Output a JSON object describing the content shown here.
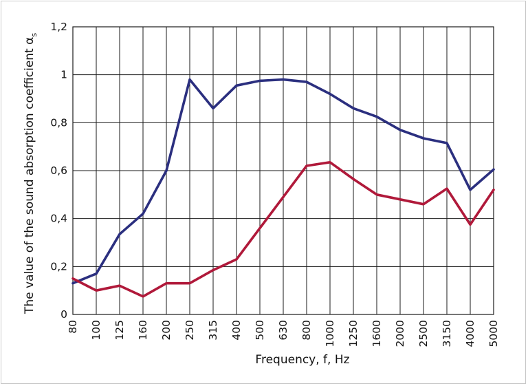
{
  "chart_data": {
    "type": "line",
    "title": "",
    "xlabel": "Frequency, f, Hz",
    "ylabel": "The value of the sound absorption coefficient α",
    "ylabel_subscript": "s",
    "x": [
      "80",
      "100",
      "125",
      "160",
      "200",
      "250",
      "315",
      "400",
      "500",
      "630",
      "800",
      "1000",
      "1250",
      "1600",
      "2000",
      "2500",
      "3150",
      "4000",
      "5000"
    ],
    "y_ticks": [
      "0",
      "0,2",
      "0,4",
      "0,6",
      "0,8",
      "1",
      "1,2"
    ],
    "ylim": [
      0,
      1.2
    ],
    "grid": true,
    "series": [
      {
        "color": "#2b2f7f",
        "values": [
          0.13,
          0.17,
          0.335,
          0.42,
          0.6,
          0.98,
          0.86,
          0.955,
          0.975,
          0.98,
          0.97,
          0.92,
          0.86,
          0.825,
          0.77,
          0.735,
          0.715,
          0.52,
          0.605
        ]
      },
      {
        "color": "#b0193a",
        "values": [
          0.15,
          0.1,
          0.12,
          0.075,
          0.13,
          0.13,
          0.185,
          0.23,
          0.36,
          0.49,
          0.62,
          0.635,
          0.565,
          0.5,
          0.48,
          0.46,
          0.525,
          0.375,
          0.52
        ]
      }
    ]
  }
}
